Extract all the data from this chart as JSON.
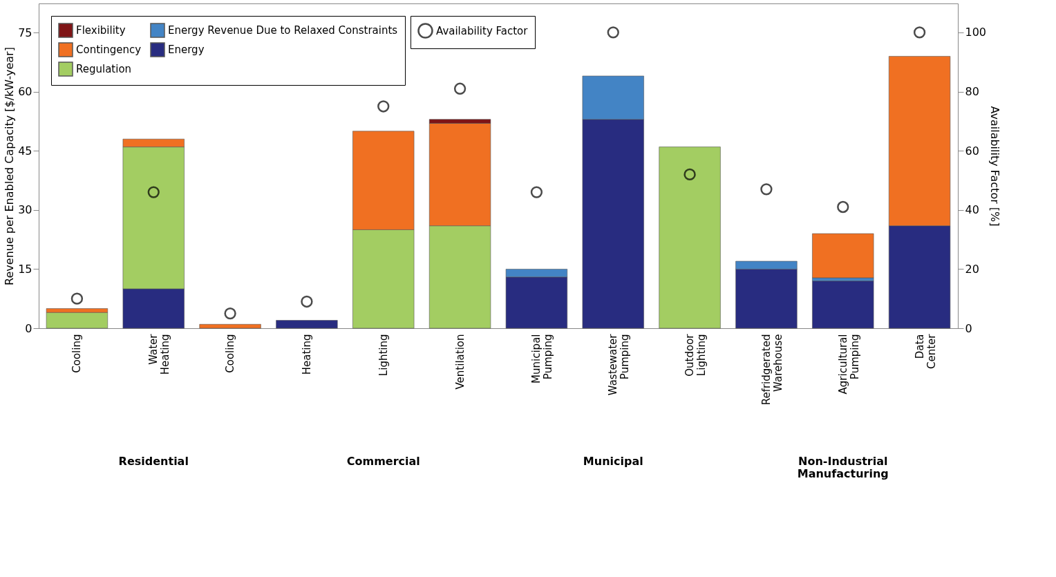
{
  "chart_data": {
    "type": "bar",
    "stacked": true,
    "ylabel": "Revenue per Enabled Capacity [$/kW-year]",
    "y2label": "Availability Factor [%]",
    "categories": [
      "Cooling",
      "Water Heating",
      "Cooling",
      "Heating",
      "Lighting",
      "Ventilation",
      "Municipal Pumping",
      "Wastewater Pumping",
      "Outdoor Lighting",
      "Refridgerated Warehouse",
      "Agricultural Pumping",
      "Data Center"
    ],
    "series": [
      {
        "name": "Energy",
        "color": "#282c80",
        "values": [
          0,
          10,
          0,
          2,
          0,
          0,
          13,
          53,
          0,
          15,
          12,
          26
        ]
      },
      {
        "name": "Energy Revenue Due to Relaxed Constraints",
        "color": "#4384c5",
        "values": [
          0,
          0,
          0,
          0,
          0,
          0,
          2,
          11,
          0,
          2,
          0.8,
          0
        ]
      },
      {
        "name": "Regulation",
        "color": "#a3cd62",
        "values": [
          4,
          36,
          0,
          0,
          25,
          26,
          0,
          0,
          46,
          0,
          0,
          0
        ]
      },
      {
        "name": "Contingency",
        "color": "#f07022",
        "values": [
          1,
          2,
          1,
          0,
          25,
          26,
          0,
          0,
          0,
          0,
          11.2,
          43
        ]
      },
      {
        "name": "Flexibility",
        "color": "#7f1416",
        "values": [
          0,
          0,
          0,
          0,
          0,
          1,
          0,
          0,
          0,
          0,
          0,
          0
        ]
      },
      {
        "name": "Availability Factor",
        "type": "scatter",
        "axis": "y2",
        "marker": "circle",
        "color": "#000000",
        "values": [
          10,
          46,
          5,
          9,
          75,
          81,
          46,
          100,
          52,
          47,
          41,
          100
        ]
      }
    ],
    "ylim": [
      0,
      82.4
    ],
    "yticks": [
      0,
      15,
      30,
      45,
      60,
      75
    ],
    "y2lim": [
      0,
      109.8
    ],
    "y2ticks": [
      0,
      20,
      40,
      60,
      80,
      100
    ],
    "grid": false,
    "legend": "top left",
    "annotations": [
      "Residential",
      "Commercial",
      "Municipal",
      "Non-Industrial Manufacturing"
    ]
  }
}
